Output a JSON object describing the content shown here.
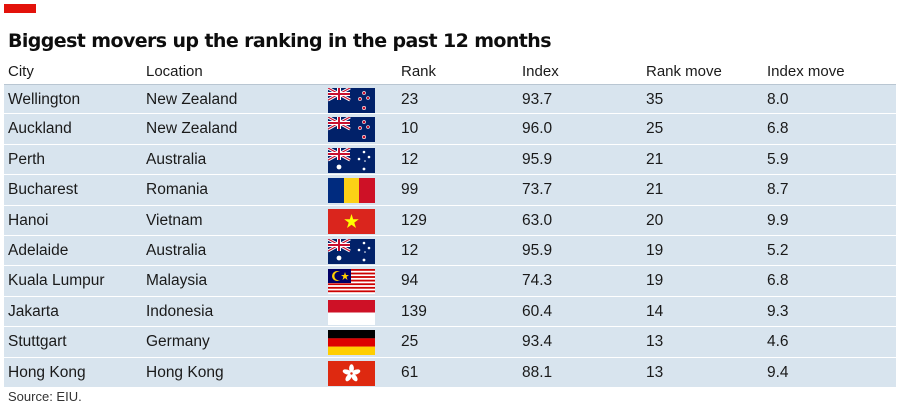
{
  "chart_data": {
    "type": "table",
    "title": "Biggest movers up the ranking in the past 12 months",
    "columns": [
      "City",
      "Location",
      "Rank",
      "Index",
      "Rank move",
      "Index move"
    ],
    "rows": [
      {
        "city": "Wellington",
        "location": "New Zealand",
        "flag": "new-zealand",
        "rank": "23",
        "index": "93.7",
        "rank_move": "35",
        "index_move": "8.0"
      },
      {
        "city": "Auckland",
        "location": "New Zealand",
        "flag": "new-zealand",
        "rank": "10",
        "index": "96.0",
        "rank_move": "25",
        "index_move": "6.8"
      },
      {
        "city": "Perth",
        "location": "Australia",
        "flag": "australia",
        "rank": "12",
        "index": "95.9",
        "rank_move": "21",
        "index_move": "5.9"
      },
      {
        "city": "Bucharest",
        "location": "Romania",
        "flag": "romania",
        "rank": "99",
        "index": "73.7",
        "rank_move": "21",
        "index_move": "8.7"
      },
      {
        "city": "Hanoi",
        "location": "Vietnam",
        "flag": "vietnam",
        "rank": "129",
        "index": "63.0",
        "rank_move": "20",
        "index_move": "9.9"
      },
      {
        "city": "Adelaide",
        "location": "Australia",
        "flag": "australia",
        "rank": "12",
        "index": "95.9",
        "rank_move": "19",
        "index_move": "5.2"
      },
      {
        "city": "Kuala Lumpur",
        "location": "Malaysia",
        "flag": "malaysia",
        "rank": "94",
        "index": "74.3",
        "rank_move": "19",
        "index_move": "6.8"
      },
      {
        "city": "Jakarta",
        "location": "Indonesia",
        "flag": "indonesia",
        "rank": "139",
        "index": "60.4",
        "rank_move": "14",
        "index_move": "9.3"
      },
      {
        "city": "Stuttgart",
        "location": "Germany",
        "flag": "germany",
        "rank": "25",
        "index": "93.4",
        "rank_move": "13",
        "index_move": "4.6"
      },
      {
        "city": "Hong Kong",
        "location": "Hong Kong",
        "flag": "hong-kong",
        "rank": "61",
        "index": "88.1",
        "rank_move": "13",
        "index_move": "9.4"
      }
    ],
    "source": "Source: EIU."
  },
  "colors": {
    "accent": "#e3120b",
    "row_background": "#d8e4ee"
  }
}
